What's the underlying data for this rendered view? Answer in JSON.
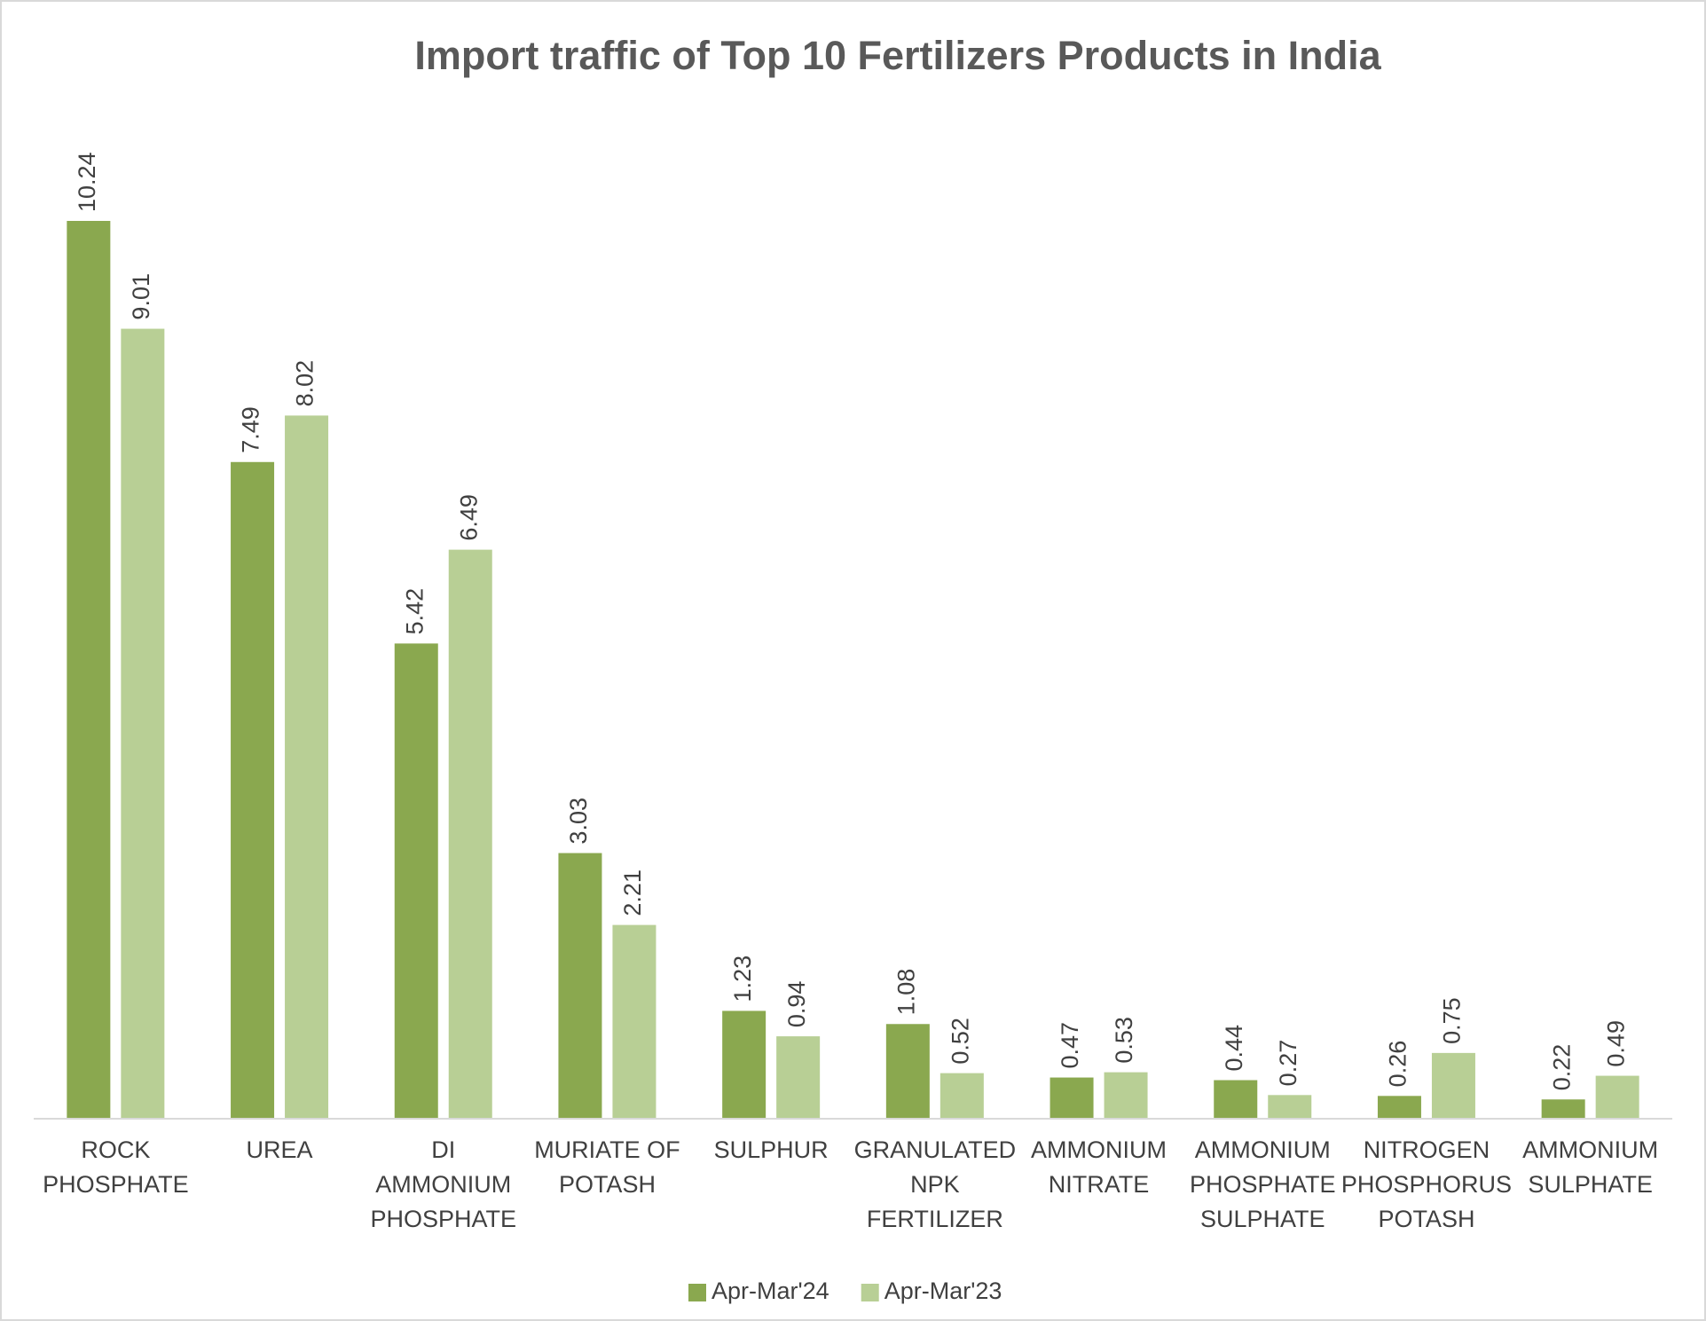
{
  "chart_data": {
    "type": "bar",
    "title": "Import traffic of Top 10 Fertilizers Products in India",
    "categories": [
      "ROCK PHOSPHATE",
      "UREA",
      "DI AMMONIUM PHOSPHATE",
      "MURIATE OF POTASH",
      "SULPHUR",
      "GRANULATED NPK FERTILIZER",
      "AMMONIUM NITRATE",
      "AMMONIUM PHOSPHATE SULPHATE",
      "NITROGEN PHOSPHORUS POTASH",
      "AMMONIUM SULPHATE"
    ],
    "series": [
      {
        "name": "Apr-Mar'24",
        "color": "#8aa84f",
        "values": [
          10.24,
          7.49,
          5.42,
          3.03,
          1.23,
          1.08,
          0.47,
          0.44,
          0.26,
          0.22
        ]
      },
      {
        "name": "Apr-Mar'23",
        "color": "#b8cf95",
        "values": [
          9.01,
          8.02,
          6.49,
          2.21,
          0.94,
          0.52,
          0.53,
          0.27,
          0.75,
          0.49
        ]
      }
    ],
    "legend": "bottom"
  }
}
